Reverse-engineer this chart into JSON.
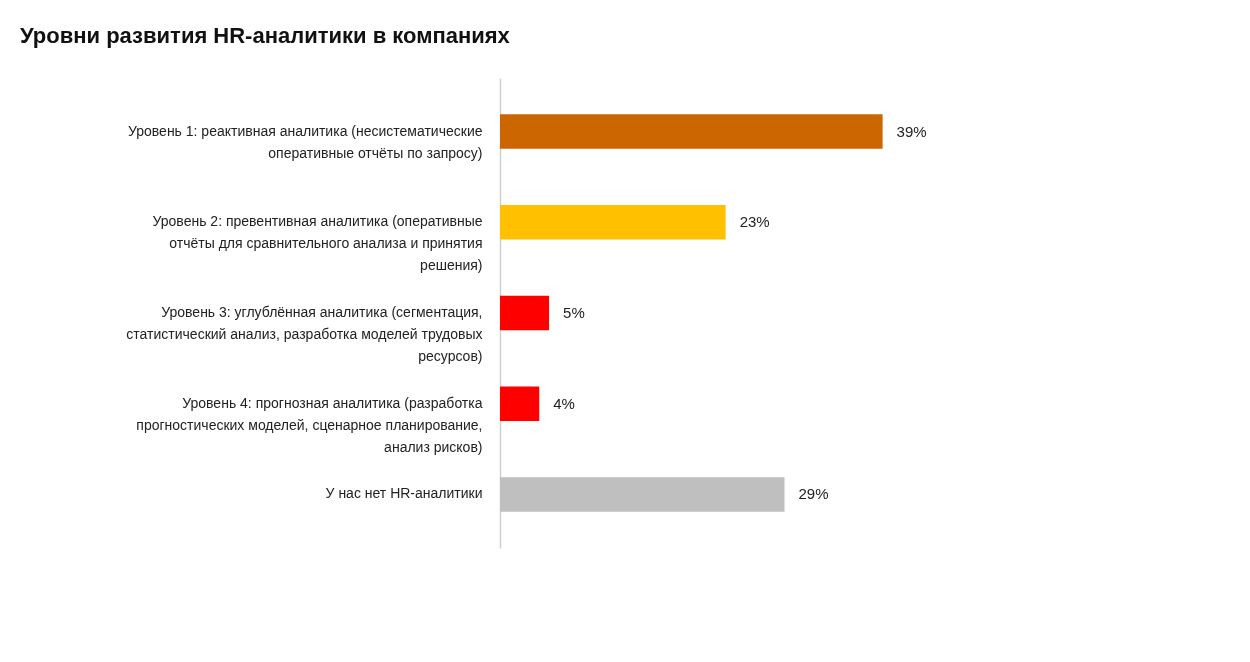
{
  "chart_data": {
    "type": "bar",
    "orientation": "horizontal",
    "title": "Уровни развития HR-аналитики в компаниях",
    "categories": [
      "Уровень 1: реактивная аналитика (несистематические оперативные отчёты по запросу)",
      "Уровень 2: превентивная аналитика (оперативные отчёты для сравнительного анализа и принятия решения)",
      "Уровень 3: углублённая аналитика (сегментация, статистический анализ, разработка моделей трудовых ресурсов)",
      "Уровень 4: прогнозная аналитика (разработка прогностических моделей, сценарное планирование, анализ рисков)",
      "У нас нет HR-аналитики"
    ],
    "values": [
      39,
      23,
      5,
      4,
      29
    ],
    "value_labels": [
      "39%",
      "23%",
      "5%",
      "4%",
      "29%"
    ],
    "colors": [
      "#cc6600",
      "#ffc000",
      "#ff0000",
      "#ff0000",
      "#bfbfbf"
    ],
    "grid": false
  }
}
